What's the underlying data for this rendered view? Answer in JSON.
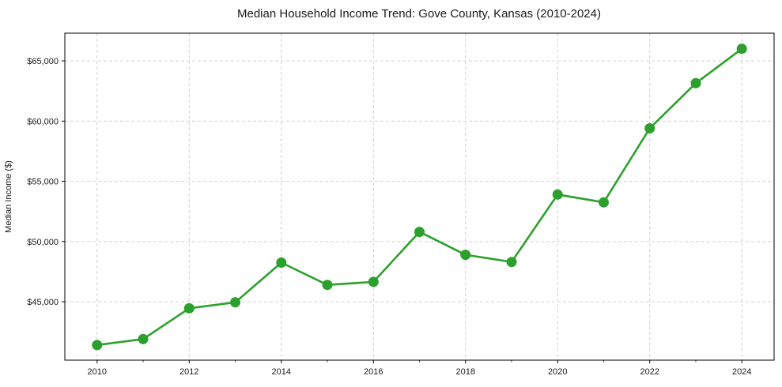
{
  "chart_data": {
    "type": "line",
    "title": "Median Household Income Trend: Gove County, Kansas (2010-2024)",
    "xlabel": "",
    "ylabel": "Median Income ($)",
    "x": [
      2010,
      2011,
      2012,
      2013,
      2014,
      2015,
      2016,
      2017,
      2018,
      2019,
      2020,
      2021,
      2022,
      2023,
      2024
    ],
    "values": [
      41400,
      41900,
      44450,
      44950,
      48250,
      46400,
      46650,
      50800,
      48900,
      48300,
      53900,
      53250,
      59400,
      63150,
      66000
    ],
    "xlim": [
      2009.3,
      2024.7
    ],
    "ylim": [
      40150,
      67300
    ],
    "xticks": {
      "values": [
        2010,
        2012,
        2014,
        2016,
        2018,
        2020,
        2022,
        2024
      ],
      "labels": [
        "2010",
        "2012",
        "2014",
        "2016",
        "2018",
        "2020",
        "2022",
        "2024"
      ]
    },
    "xticks_minor": [
      2011,
      2013,
      2015,
      2017,
      2019,
      2021,
      2023
    ],
    "yticks": {
      "values": [
        45000,
        50000,
        55000,
        60000,
        65000
      ],
      "labels": [
        "$45,000",
        "$50,000",
        "$55,000",
        "$60,000",
        "$65,000"
      ]
    },
    "grid": true,
    "grid_style": "dashed",
    "legend": "none",
    "colors": {
      "line": "#2ca02c",
      "marker": "#2ca02c",
      "grid": "#cccccc",
      "spine": "#000000",
      "text": "#1a1a1a",
      "background": "#ffffff"
    }
  }
}
